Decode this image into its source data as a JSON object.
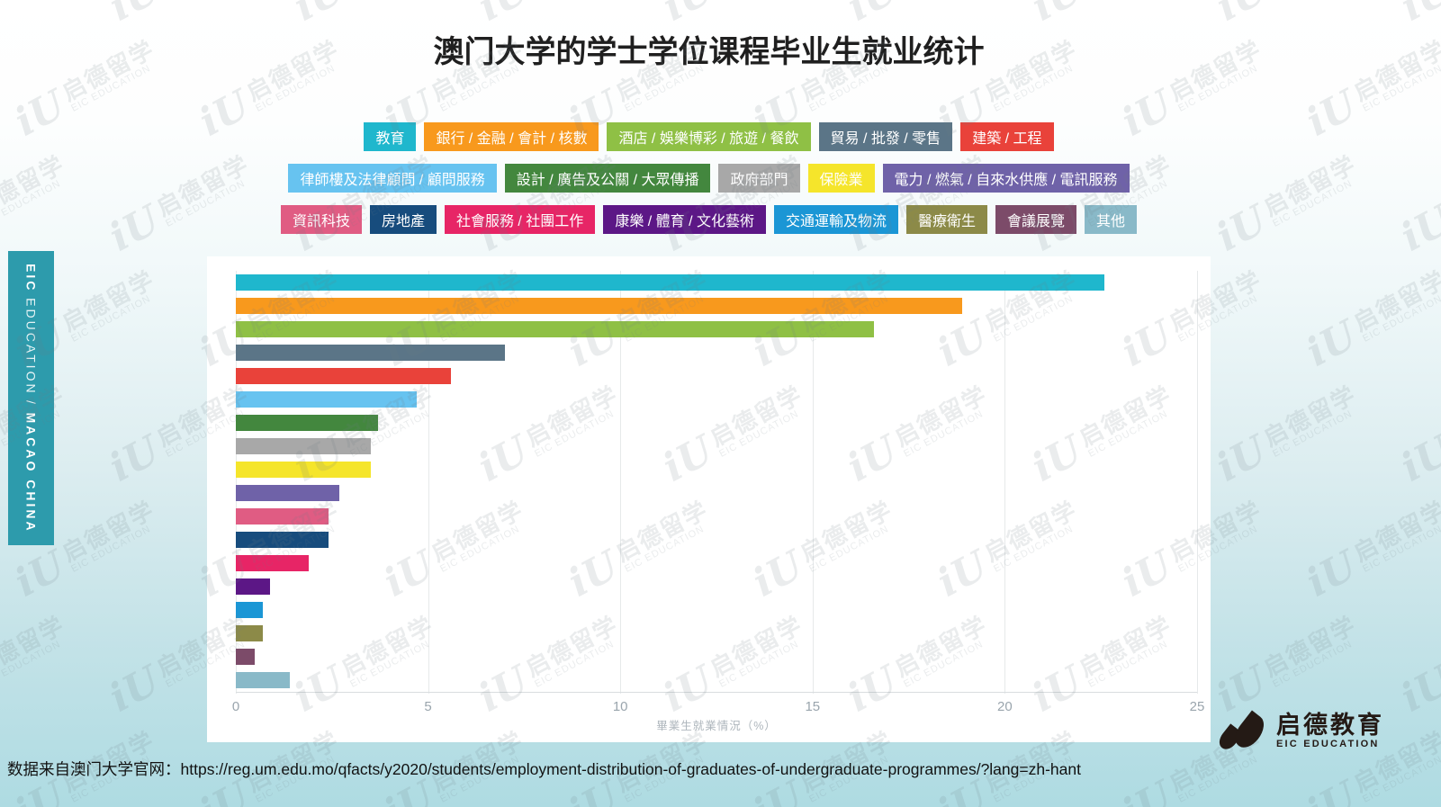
{
  "title": "澳门大学的学士学位课程毕业生就业统计",
  "sidebar": {
    "brand": "EIC",
    "brand_sub": "EDUCATION",
    "divider": "/",
    "region": "MACAO CHINA"
  },
  "watermark": {
    "cn": "启德留学",
    "en": "EIC EDUCATION",
    "glyph": "iU"
  },
  "legend": {
    "rows": [
      [
        0,
        1,
        2,
        3,
        4
      ],
      [
        5,
        6,
        7,
        8,
        9
      ],
      [
        10,
        11,
        12,
        13,
        14,
        15,
        16,
        17
      ]
    ]
  },
  "chart_data": {
    "type": "bar",
    "orientation": "horizontal",
    "title": "澳门大学的学士学位课程毕业生就业统计",
    "xlabel": "畢業生就業情況（%）",
    "ylabel": "",
    "xlim": [
      0,
      25
    ],
    "xticks": [
      0,
      5,
      10,
      15,
      20,
      25
    ],
    "grid": true,
    "legend_position": "top",
    "categories": [
      "教育",
      "銀行 / 金融 / 會計 / 核數",
      "酒店 / 娛樂博彩 / 旅遊 / 餐飲",
      "貿易 / 批發 / 零售",
      "建築 / 工程",
      "律師樓及法律顧問 / 顧問服務",
      "設計 / 廣告及公關 / 大眾傳播",
      "政府部門",
      "保險業",
      "電力 / 燃氣 / 自來水供應 / 電訊服務",
      "資訊科技",
      "房地產",
      "社會服務 / 社團工作",
      "康樂 / 體育 / 文化藝術",
      "交通運輸及物流",
      "醫療衛生",
      "會議展覽",
      "其他"
    ],
    "values": [
      22.6,
      18.9,
      16.6,
      7.0,
      5.6,
      4.7,
      3.7,
      3.5,
      3.5,
      2.7,
      2.4,
      2.4,
      1.9,
      0.9,
      0.7,
      0.7,
      0.5,
      1.4
    ],
    "colors": [
      "#1FB7CD",
      "#F8991D",
      "#8FC045",
      "#5B7587",
      "#E9423A",
      "#67C3F0",
      "#43873E",
      "#A8A8A8",
      "#F5E52B",
      "#6F62A8",
      "#E05C83",
      "#174C7D",
      "#E72566",
      "#5C1786",
      "#1B96D5",
      "#8C8A48",
      "#7C4B69",
      "#89B9C8"
    ]
  },
  "footer": {
    "source_text": "数据来自澳门大学官网：https://reg.um.edu.mo/qfacts/y2020/students/employment-distribution-of-graduates-of-undergraduate-programmes/?lang=zh-hant"
  },
  "logo": {
    "cn": "启德教育",
    "en": "EIC EDUCATION"
  }
}
